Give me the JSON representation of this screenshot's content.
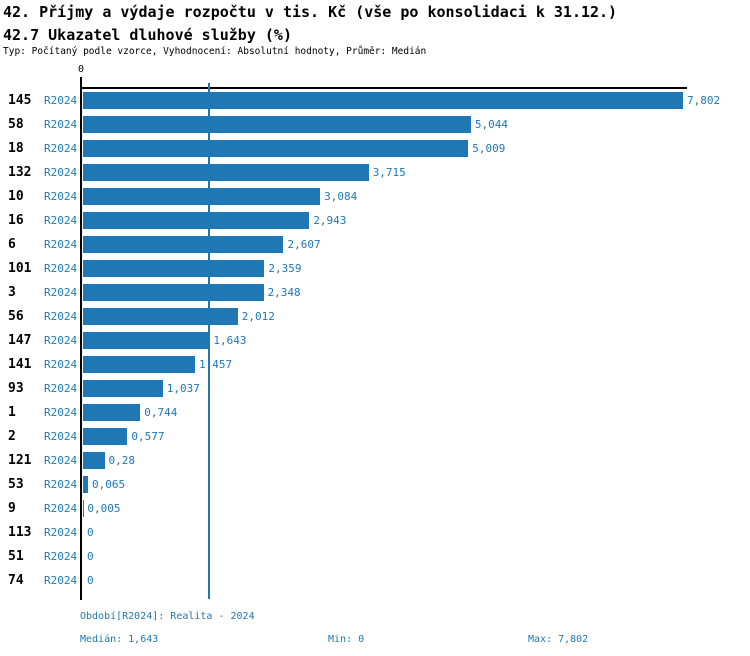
{
  "header": {
    "title_line1": "42. Příjmy a výdaje rozpočtu v tis. Kč (vše po konsolidaci k 31.12.)",
    "title_line2": "42.7 Ukazatel dluhové služby (%)",
    "meta_line": "Typ: Počítaný podle vzorce, Vyhodnocení: Absolutní hodnoty, Průměr: Medián"
  },
  "chart_data": {
    "type": "bar",
    "orientation": "horizontal",
    "series_name": "R2024",
    "categories": [
      "145",
      "58",
      "18",
      "132",
      "10",
      "16",
      "6",
      "101",
      "3",
      "56",
      "147",
      "141",
      "93",
      "1",
      "2",
      "121",
      "53",
      "9",
      "113",
      "51",
      "74"
    ],
    "values": [
      7.802,
      5.044,
      5.009,
      3.715,
      3.084,
      2.943,
      2.607,
      2.359,
      2.348,
      2.012,
      1.643,
      1.457,
      1.037,
      0.744,
      0.577,
      0.28,
      0.065,
      0.005,
      0,
      0,
      0
    ],
    "value_labels": [
      "7,802",
      "5,044",
      "5,009",
      "3,715",
      "3,084",
      "2,943",
      "2,607",
      "2,359",
      "2,348",
      "2,012",
      "1,643",
      "1,457",
      "1,037",
      "0,744",
      "0,577",
      "0,28",
      "0,065",
      "0,005",
      "0",
      "0",
      "0"
    ],
    "xlim": [
      0,
      7.802
    ],
    "axis_zero_label": "0",
    "median_line_value": 1.643,
    "bar_color": "#1f77b4",
    "grid": false,
    "legend": false
  },
  "footer": {
    "period": "Období[R2024]: Realita - 2024",
    "median": "Medián: 1,643",
    "min": "Min: 0",
    "max": "Max: 7,802"
  },
  "colors": {
    "bar": "#1f77b4",
    "blue_text": "#1f77b4",
    "axis": "#000000",
    "background": "#ffffff"
  }
}
